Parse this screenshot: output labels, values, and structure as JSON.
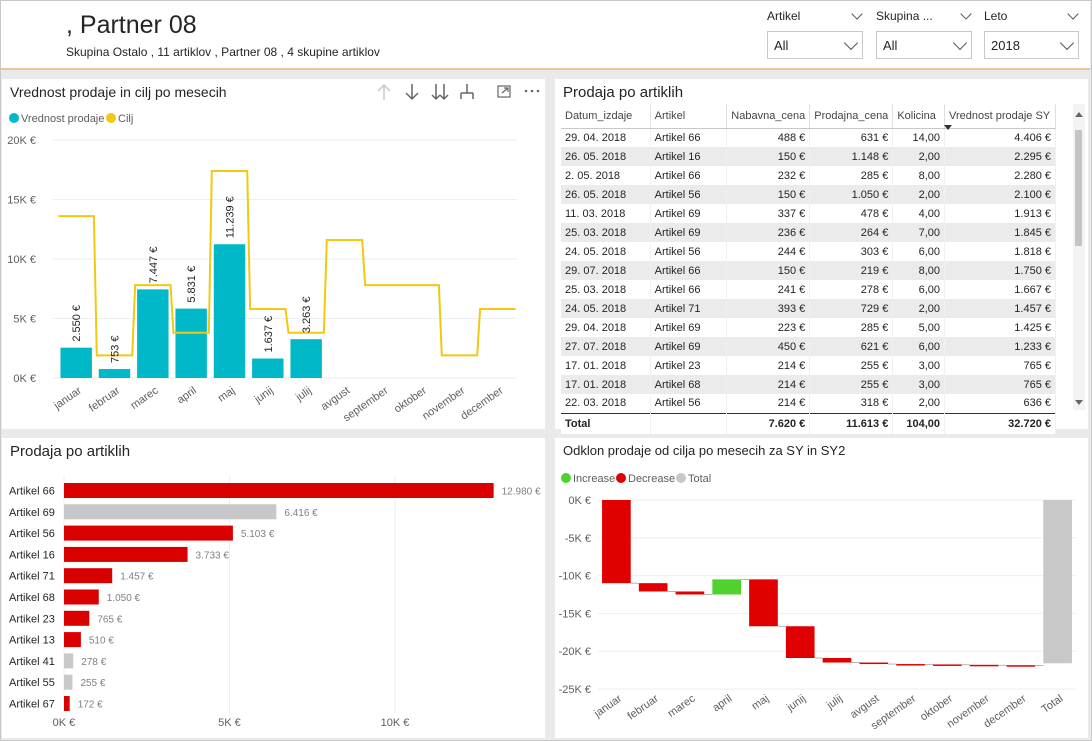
{
  "header": {
    "title": ", Partner 08",
    "subtitle": "Skupina Ostalo , 11 artiklov , Partner 08 , 4 skupine artiklov"
  },
  "slicers": [
    {
      "label": "Artikel",
      "value": "All"
    },
    {
      "label": "Skupina ...",
      "value": "All"
    },
    {
      "label": "Leto",
      "value": "2018"
    }
  ],
  "visual_toolbar_icons": [
    "drill-up-icon",
    "drill-down-icon",
    "expand-all-icon",
    "expand-hierarchy-icon",
    "focus-mode-icon",
    "more-options-icon"
  ],
  "colors": {
    "primary": "#01b8c9",
    "target": "#f2c811",
    "decrease": "#e00000",
    "increase": "#50d22e",
    "total": "#c8c8c8",
    "bar_red": "#d90000",
    "bar_grey": "#c8c8c8"
  },
  "chart_data": [
    {
      "type": "bar",
      "title": "Vrednost prodaje in cilj po mesecih",
      "legend": [
        "Vrednost prodaje",
        "Cilj"
      ],
      "legend_position": "top-left",
      "categories": [
        "januar",
        "februar",
        "marec",
        "april",
        "maj",
        "junij",
        "julij",
        "avgust",
        "september",
        "oktober",
        "november",
        "december"
      ],
      "series": [
        {
          "name": "Vrednost prodaje",
          "values": [
            2550,
            753,
            7447,
            5831,
            11239,
            1637,
            3263,
            null,
            null,
            null,
            null,
            null
          ],
          "labels": [
            "2.550 €",
            "753 €",
            "7.447 €",
            "5.831 €",
            "11.239 €",
            "1.637 €",
            "3.263 €",
            "",
            "",
            "",
            "",
            ""
          ]
        },
        {
          "name": "Cilj",
          "type": "step-line",
          "values": [
            13600,
            1900,
            7800,
            3800,
            17400,
            5800,
            3800,
            11600,
            7800,
            7800,
            1900,
            5800
          ]
        }
      ],
      "yticks": [
        "0K €",
        "5K €",
        "10K €",
        "15K €",
        "20K €"
      ],
      "ylim": [
        0,
        20000
      ],
      "grid": true
    },
    {
      "type": "table",
      "title": "Prodaja po artiklih",
      "columns": [
        "Datum_izdaje",
        "Artikel",
        "Nabavna_cena",
        "Prodajna_cena",
        "Kolicina",
        "Vrednost prodaje SY"
      ],
      "rows": [
        [
          "29. 04. 2018",
          "Artikel 66",
          "488 €",
          "631 €",
          "14,00",
          "4.406 €"
        ],
        [
          "26. 05. 2018",
          "Artikel 16",
          "150 €",
          "1.148 €",
          "2,00",
          "2.295 €"
        ],
        [
          "2. 05. 2018",
          "Artikel 66",
          "232 €",
          "285 €",
          "8,00",
          "2.280 €"
        ],
        [
          "26. 05. 2018",
          "Artikel 56",
          "150 €",
          "1.050 €",
          "2,00",
          "2.100 €"
        ],
        [
          "11. 03. 2018",
          "Artikel 69",
          "337 €",
          "478 €",
          "4,00",
          "1.913 €"
        ],
        [
          "25. 03. 2018",
          "Artikel 69",
          "236 €",
          "264 €",
          "7,00",
          "1.845 €"
        ],
        [
          "24. 05. 2018",
          "Artikel 56",
          "244 €",
          "303 €",
          "6,00",
          "1.818 €"
        ],
        [
          "29. 07. 2018",
          "Artikel 66",
          "150 €",
          "219 €",
          "8,00",
          "1.750 €"
        ],
        [
          "25. 03. 2018",
          "Artikel 66",
          "241 €",
          "278 €",
          "6,00",
          "1.667 €"
        ],
        [
          "24. 05. 2018",
          "Artikel 71",
          "393 €",
          "729 €",
          "2,00",
          "1.457 €"
        ],
        [
          "29. 04. 2018",
          "Artikel 69",
          "223 €",
          "285 €",
          "5,00",
          "1.425 €"
        ],
        [
          "27. 07. 2018",
          "Artikel 69",
          "450 €",
          "621 €",
          "6,00",
          "1.233 €"
        ],
        [
          "17. 01. 2018",
          "Artikel 23",
          "214 €",
          "255 €",
          "3,00",
          "765 €"
        ],
        [
          "17. 01. 2018",
          "Artikel 68",
          "214 €",
          "255 €",
          "3,00",
          "765 €"
        ],
        [
          "22. 03. 2018",
          "Artikel 56",
          "214 €",
          "318 €",
          "2,00",
          "636 €"
        ]
      ],
      "total": [
        "Total",
        "",
        "7.620 €",
        "11.613 €",
        "104,00",
        "32.720 €"
      ],
      "sort_column": "Vrednost prodaje SY"
    },
    {
      "type": "bar",
      "orientation": "horizontal",
      "title": "Prodaja po artiklih",
      "categories": [
        "Artikel 66",
        "Artikel 69",
        "Artikel 56",
        "Artikel 16",
        "Artikel 71",
        "Artikel 68",
        "Artikel 23",
        "Artikel 13",
        "Artikel 41",
        "Artikel 55",
        "Artikel 67"
      ],
      "values": [
        12980,
        6416,
        5103,
        3733,
        1457,
        1050,
        765,
        510,
        278,
        255,
        172
      ],
      "labels": [
        "12.980 €",
        "6.416 €",
        "5.103 €",
        "3.733 €",
        "1.457 €",
        "1.050 €",
        "765 €",
        "510 €",
        "278 €",
        "255 €",
        "172 €"
      ],
      "bar_colors": [
        "red",
        "grey",
        "red",
        "red",
        "red",
        "red",
        "red",
        "red",
        "grey",
        "grey",
        "red"
      ],
      "xticks": [
        "0K €",
        "5K €",
        "10K €"
      ],
      "xlim": [
        0,
        15000
      ]
    },
    {
      "type": "waterfall",
      "title": "Odklon prodaje od cilja po mesecih za SY in SY2",
      "legend": [
        "Increase",
        "Decrease",
        "Total"
      ],
      "legend_position": "top-left",
      "categories": [
        "januar",
        "februar",
        "marec",
        "april",
        "maj",
        "junij",
        "julij",
        "avgust",
        "september",
        "oktober",
        "november",
        "december",
        "Total"
      ],
      "deltas": [
        -11000,
        -1100,
        -400,
        2000,
        -6200,
        -4200,
        -600,
        -200,
        -50,
        -50,
        -50,
        -50,
        null
      ],
      "total": -21600,
      "yticks": [
        "0K €",
        "-5K €",
        "-10K €",
        "-15K €",
        "-20K €",
        "-25K €"
      ],
      "ylim": [
        -25000,
        0
      ]
    }
  ]
}
